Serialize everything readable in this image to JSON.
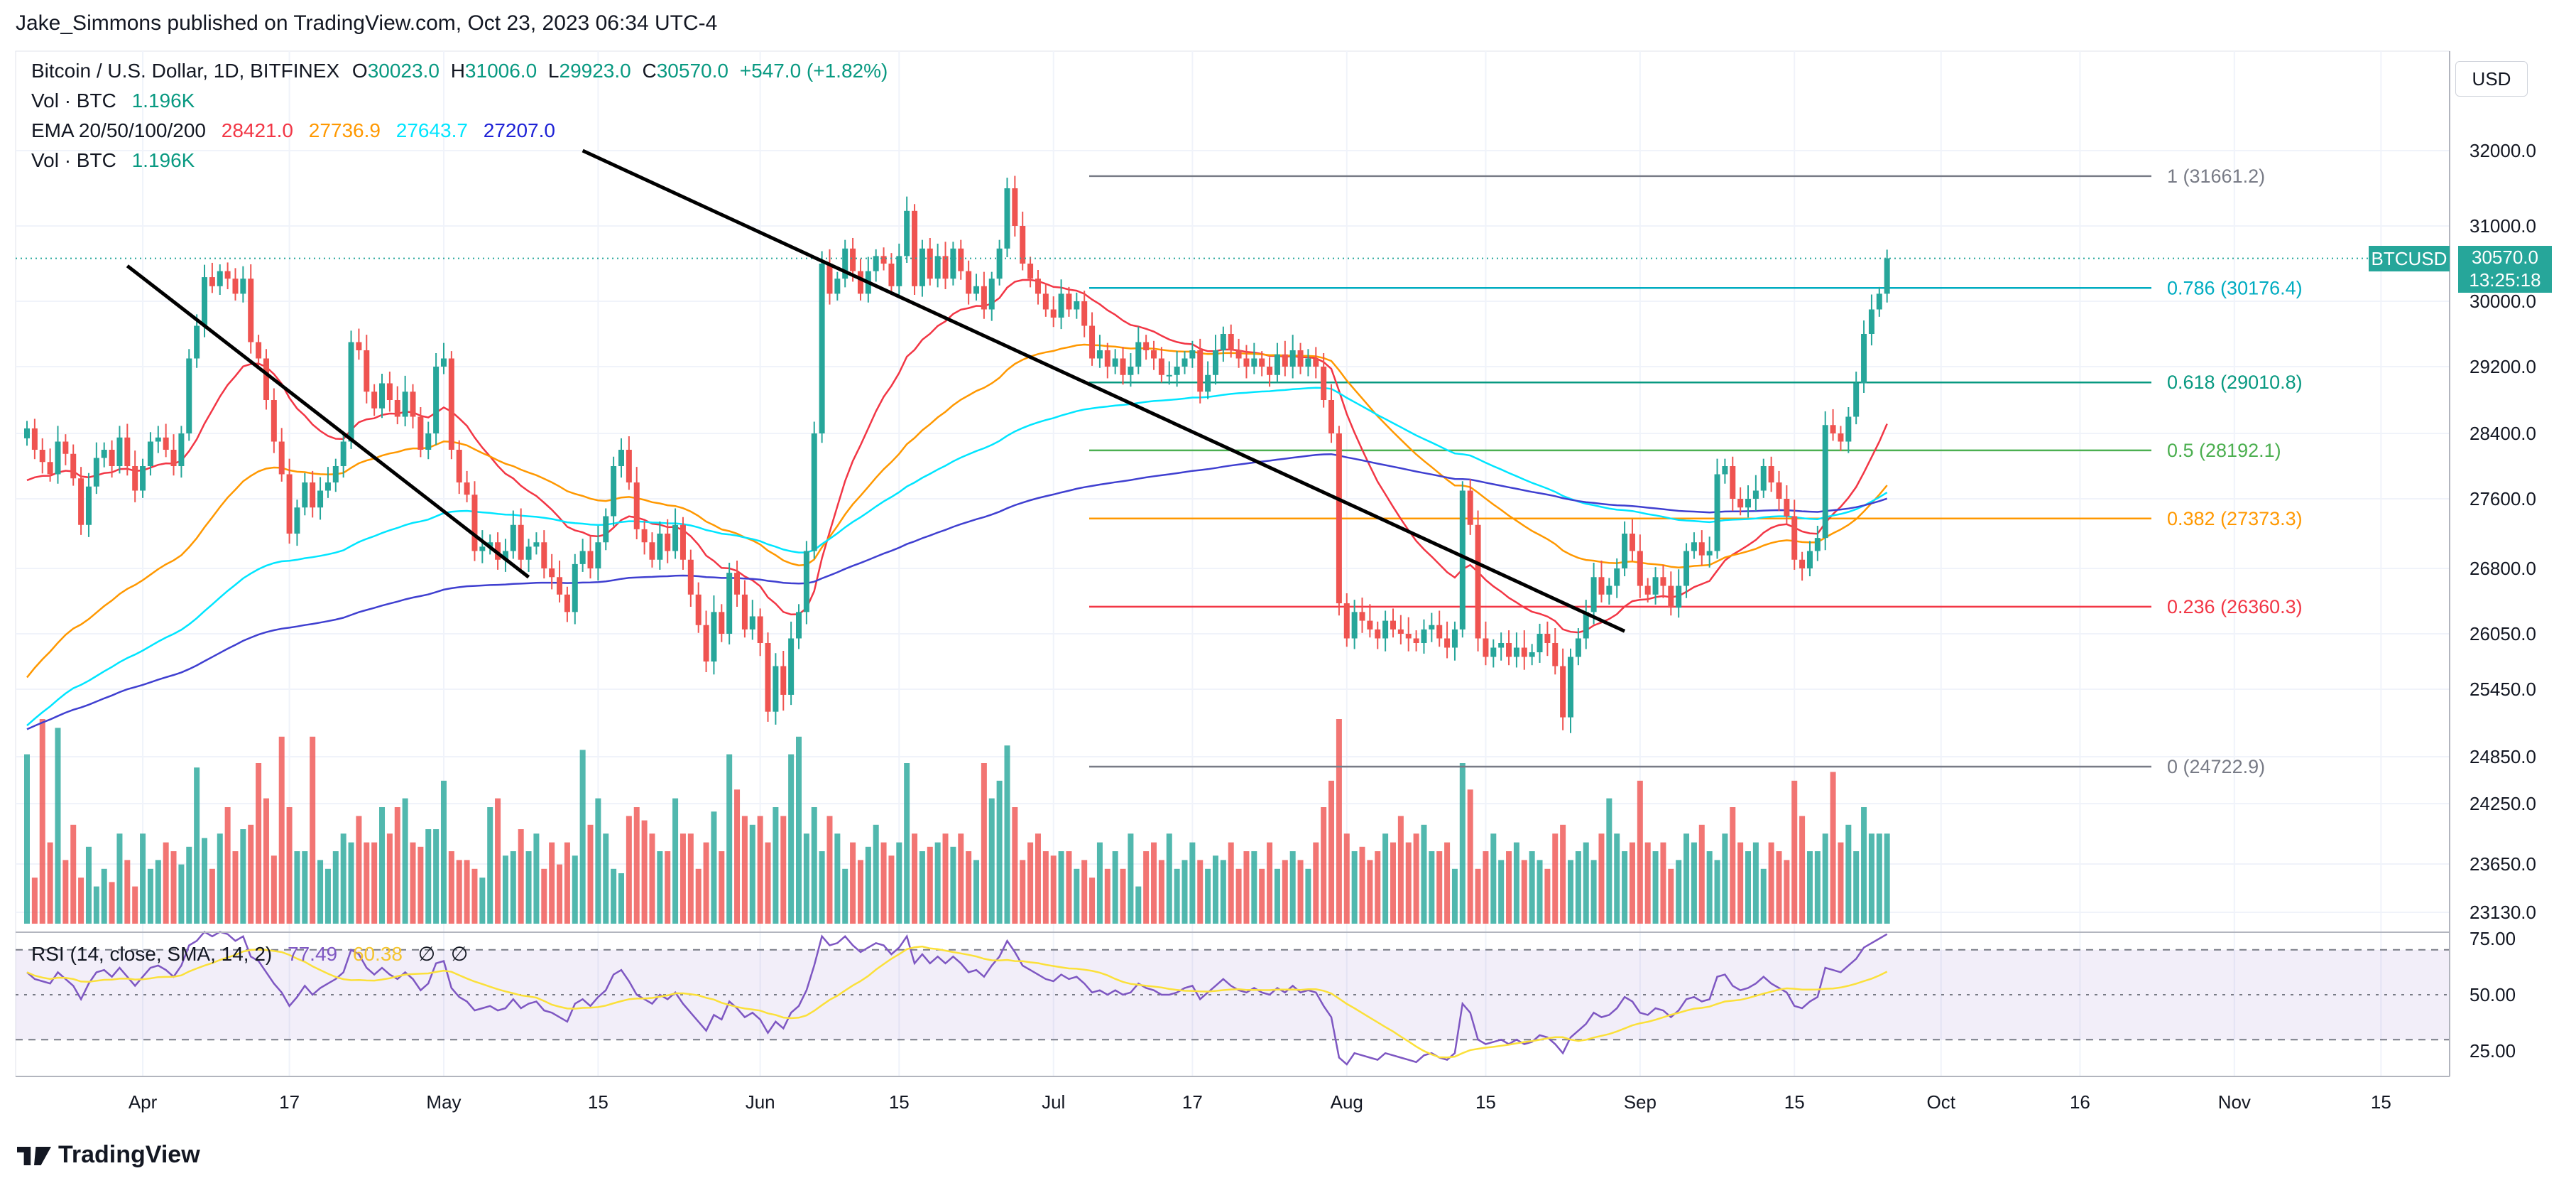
{
  "credit": "Jake_Simmons published on TradingView.com, Oct 23, 2023 06:34 UTC-4",
  "header": {
    "symbol": "Bitcoin / U.S. Dollar, 1D, BITFINEX",
    "o_label": "O",
    "o_value": "30023.0",
    "h_label": "H",
    "h_value": "31006.0",
    "l_label": "L",
    "l_value": "29923.0",
    "c_label": "C",
    "c_value": "30570.0",
    "change": "+547.0 (+1.82%)",
    "vol_label": "Vol · BTC",
    "vol_value": "1.196K",
    "ema_label": "EMA 20/50/100/200",
    "ema20": "28421.0",
    "ema50": "27736.9",
    "ema100": "27643.7",
    "ema200": "27207.0",
    "vol2_label": "Vol · BTC",
    "vol2_value": "1.196K"
  },
  "currency_button": "USD",
  "last_price": {
    "symbol": "BTCUSD",
    "price": "30570.0",
    "countdown": "13:25:18"
  },
  "rsi_legend": {
    "label": "RSI (14, close, SMA, 14, 2)",
    "rsi": "77.49",
    "sma": "60.38",
    "extra1": "∅",
    "extra2": "∅"
  },
  "brand": "TradingView",
  "colors": {
    "up": "#26a69a",
    "down": "#ef5350",
    "ema20": "#f23645",
    "ema50": "#ff9800",
    "ema100": "#00e5ff",
    "ema200": "#3f3fd0",
    "rsi": "#7e57c2",
    "rsi_sma": "#fbe03a",
    "trendline": "#000000"
  },
  "chart_data": {
    "type": "candlestick",
    "x_ticks": [
      "Apr",
      "17",
      "May",
      "15",
      "Jun",
      "15",
      "Jul",
      "17",
      "Aug",
      "15",
      "Sep",
      "15",
      "Oct",
      "16",
      "Nov",
      "15"
    ],
    "price_ticks": [
      "32000.0",
      "31000.0",
      "30000.0",
      "29200.0",
      "28400.0",
      "27600.0",
      "26800.0",
      "26050.0",
      "25450.0",
      "24850.0",
      "24250.0",
      "23650.0",
      "23130.0"
    ],
    "rsi_ticks": [
      "75.00",
      "50.00",
      "25.00"
    ],
    "fib_levels": [
      {
        "label": "1 (31661.2)",
        "value": 31661.2,
        "color": "#787b86"
      },
      {
        "label": "0.786 (30176.4)",
        "value": 30176.4,
        "color": "#00acc1"
      },
      {
        "label": "0.618 (29010.8)",
        "value": 29010.8,
        "color": "#089981"
      },
      {
        "label": "0.5 (28192.1)",
        "value": 28192.1,
        "color": "#4caf50"
      },
      {
        "label": "0.382 (27373.3)",
        "value": 27373.3,
        "color": "#ff9800"
      },
      {
        "label": "0.236 (26360.3)",
        "value": 26360.3,
        "color": "#f23645"
      },
      {
        "label": "0 (24722.9)",
        "value": 24722.9,
        "color": "#787b86"
      }
    ],
    "trendlines": [
      {
        "from": [
          13,
          30470
        ],
        "to": [
          65,
          26700
        ]
      },
      {
        "from": [
          72,
          32000
        ],
        "to": [
          207,
          26080
        ]
      }
    ],
    "closes": [
      28460,
      28200,
      28050,
      27900,
      28300,
      28150,
      27850,
      27300,
      27750,
      28100,
      28200,
      28000,
      28350,
      28000,
      27700,
      28000,
      28300,
      28350,
      28200,
      28000,
      28400,
      29300,
      29700,
      30320,
      30200,
      30400,
      30300,
      30100,
      30300,
      29500,
      29300,
      28800,
      28300,
      27900,
      27200,
      27500,
      27800,
      27500,
      27700,
      27800,
      28000,
      28300,
      29500,
      29400,
      28900,
      28700,
      29000,
      28800,
      28600,
      28900,
      28600,
      28200,
      28400,
      29200,
      29300,
      28200,
      27800,
      27650,
      27000,
      27050,
      27100,
      26900,
      27000,
      27300,
      26900,
      27050,
      27100,
      26800,
      26700,
      26500,
      26300,
      26850,
      27000,
      26800,
      27100,
      27400,
      28000,
      28200,
      27800,
      27250,
      27100,
      26900,
      27200,
      27000,
      27300,
      26900,
      26500,
      26150,
      25750,
      26300,
      26050,
      26750,
      26500,
      26100,
      26250,
      25950,
      25250,
      25700,
      25400,
      26000,
      26300,
      27000,
      28400,
      30500,
      30100,
      30300,
      30700,
      30400,
      30100,
      30400,
      30600,
      30500,
      30200,
      30600,
      31200,
      30200,
      30700,
      30300,
      30600,
      30300,
      30700,
      30400,
      30100,
      30200,
      29900,
      30300,
      30700,
      31500,
      31000,
      30500,
      30300,
      30100,
      29900,
      29800,
      30100,
      29900,
      30000,
      29700,
      29300,
      29400,
      29200,
      29300,
      29100,
      29200,
      29500,
      29400,
      29300,
      29100,
      29100,
      29200,
      29300,
      29400,
      28900,
      29100,
      29400,
      29600,
      29400,
      29300,
      29200,
      29300,
      29200,
      29100,
      29350,
      29200,
      29400,
      29200,
      29300,
      29200,
      28800,
      28400,
      26400,
      26000,
      26300,
      26200,
      26100,
      26000,
      26200,
      26100,
      26050,
      26000,
      25950,
      26100,
      26150,
      26000,
      25900,
      26100,
      27700,
      27300,
      26000,
      25800,
      25900,
      25950,
      25800,
      25900,
      25800,
      25850,
      26050,
      25950,
      25700,
      25200,
      25800,
      26000,
      26300,
      26700,
      26500,
      26600,
      26800,
      27200,
      27000,
      26600,
      26500,
      26700,
      26600,
      26350,
      26600,
      27000,
      27100,
      26950,
      27000,
      27900,
      28000,
      27600,
      27500,
      27600,
      27700,
      28000,
      27800,
      27600,
      27400,
      26900,
      26800,
      27000,
      27150,
      28500,
      28400,
      28300,
      28600,
      29000,
      29600,
      29900,
      30100,
      30570
    ],
    "volumes": [
      820,
      540,
      900,
      620,
      880,
      580,
      660,
      540,
      610,
      520,
      560,
      530,
      640,
      580,
      520,
      640,
      560,
      580,
      620,
      600,
      570,
      610,
      790,
      630,
      560,
      640,
      700,
      600,
      650,
      660,
      800,
      720,
      590,
      860,
      700,
      600,
      600,
      860,
      580,
      560,
      600,
      640,
      620,
      680,
      620,
      620,
      700,
      640,
      700,
      720,
      620,
      610,
      650,
      650,
      760,
      600,
      580,
      580,
      560,
      540,
      700,
      720,
      590,
      600,
      650,
      600,
      640,
      560,
      620,
      570,
      620,
      590,
      830,
      660,
      720,
      640,
      560,
      550,
      680,
      700,
      670,
      640,
      600,
      600,
      720,
      640,
      640,
      560,
      620,
      690,
      600,
      820,
      740,
      680,
      660,
      680,
      620,
      700,
      680,
      820,
      860,
      640,
      700,
      600,
      680,
      640,
      560,
      620,
      580,
      610,
      660,
      620,
      590,
      620,
      800,
      640,
      600,
      610,
      620,
      640,
      610,
      640,
      600,
      580,
      800,
      720,
      760,
      840,
      700,
      580,
      620,
      640,
      600,
      590,
      600,
      600,
      560,
      580,
      540,
      620,
      560,
      600,
      560,
      640,
      520,
      600,
      620,
      580,
      640,
      560,
      580,
      620,
      580,
      560,
      590,
      580,
      620,
      560,
      600,
      600,
      560,
      620,
      560,
      580,
      600,
      580,
      560,
      620,
      700,
      760,
      900,
      640,
      600,
      610,
      580,
      600,
      640,
      620,
      680,
      620,
      640,
      660,
      600,
      600,
      620,
      560,
      800,
      740,
      560,
      600,
      640,
      580,
      600,
      620,
      580,
      600,
      580,
      560,
      640,
      660,
      580,
      600,
      620,
      580,
      640,
      720,
      640,
      600,
      620,
      760,
      620,
      600,
      620,
      560,
      580,
      640,
      620,
      660,
      600,
      580,
      640,
      700,
      620,
      600,
      620,
      560,
      620,
      600,
      580,
      760,
      680,
      600,
      600,
      640,
      780,
      620,
      660,
      600,
      700,
      640,
      640,
      640
    ],
    "rsi_values": [
      60,
      57,
      56,
      55,
      60,
      57,
      54,
      48,
      55,
      60,
      61,
      58,
      62,
      58,
      54,
      58,
      62,
      63,
      61,
      58,
      63,
      72,
      74,
      78,
      76,
      78,
      77,
      74,
      76,
      67,
      65,
      60,
      55,
      51,
      45,
      49,
      54,
      50,
      53,
      55,
      57,
      60,
      70,
      68,
      62,
      59,
      62,
      59,
      57,
      60,
      57,
      52,
      55,
      64,
      65,
      53,
      49,
      47,
      43,
      44,
      45,
      43,
      44,
      48,
      44,
      46,
      47,
      43,
      42,
      40,
      38,
      46,
      48,
      45,
      49,
      52,
      59,
      61,
      56,
      50,
      48,
      46,
      50,
      48,
      51,
      46,
      42,
      38,
      34,
      41,
      39,
      47,
      44,
      40,
      42,
      39,
      33,
      38,
      35,
      42,
      45,
      52,
      63,
      76,
      72,
      73,
      76,
      72,
      69,
      71,
      73,
      72,
      68,
      71,
      76,
      64,
      68,
      64,
      67,
      64,
      67,
      64,
      60,
      61,
      58,
      63,
      67,
      74,
      69,
      63,
      61,
      59,
      57,
      56,
      59,
      57,
      58,
      55,
      51,
      52,
      50,
      52,
      50,
      51,
      55,
      53,
      52,
      50,
      50,
      51,
      53,
      54,
      48,
      51,
      54,
      57,
      54,
      52,
      51,
      53,
      51,
      50,
      53,
      51,
      54,
      51,
      52,
      51,
      45,
      40,
      22,
      19,
      24,
      23,
      22,
      21,
      24,
      23,
      22,
      21,
      20,
      23,
      24,
      22,
      21,
      24,
      46,
      42,
      30,
      28,
      29,
      30,
      28,
      30,
      28,
      29,
      32,
      31,
      28,
      24,
      31,
      34,
      37,
      42,
      40,
      41,
      44,
      49,
      47,
      42,
      41,
      44,
      43,
      40,
      43,
      48,
      49,
      47,
      48,
      58,
      59,
      54,
      52,
      53,
      55,
      58,
      55,
      53,
      51,
      45,
      44,
      47,
      49,
      62,
      61,
      60,
      63,
      66,
      71,
      73,
      75,
      77
    ]
  }
}
